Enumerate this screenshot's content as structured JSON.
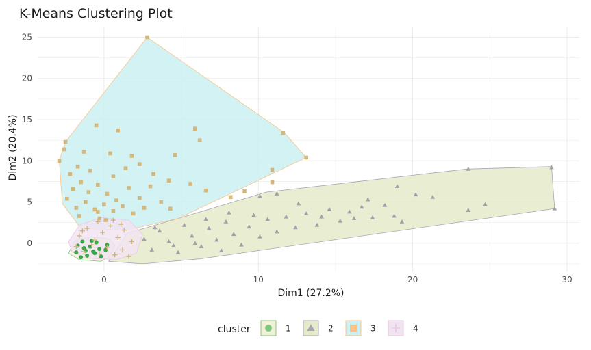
{
  "chart_data": {
    "type": "scatter",
    "title": "K-Means Clustering Plot",
    "xlabel": "Dim1 (27.2%)",
    "ylabel": "Dim2 (20.4%)",
    "xlim": [
      -4.3,
      30.8
    ],
    "ylim": [
      -3.5,
      26.2
    ],
    "x_ticks": [
      0,
      10,
      20,
      30
    ],
    "y_ticks": [
      0,
      5,
      10,
      15,
      20,
      25
    ],
    "grid": true,
    "legend_title": "cluster",
    "legend_position": "bottom",
    "series": [
      {
        "name": "1",
        "marker": "circle",
        "color": "#7fc97f",
        "fill": "#f3f0d8",
        "hull": [
          [
            -2.3,
            -1.2
          ],
          [
            -1.6,
            -2.0
          ],
          [
            -0.2,
            -2.2
          ],
          [
            0.4,
            -1.6
          ],
          [
            0.7,
            -0.3
          ],
          [
            0.4,
            0.5
          ],
          [
            -0.8,
            0.8
          ],
          [
            -1.9,
            0.3
          ]
        ],
        "points": [
          [
            -1.7,
            -0.3
          ],
          [
            -1.2,
            -0.9
          ],
          [
            -0.9,
            -0.4
          ],
          [
            -0.6,
            -1.2
          ],
          [
            -1.4,
            0.2
          ],
          [
            -0.3,
            -0.7
          ],
          [
            -1.1,
            -1.5
          ],
          [
            -0.5,
            0.1
          ],
          [
            0.1,
            -0.8
          ],
          [
            -1.8,
            -1.1
          ],
          [
            -0.8,
            0.3
          ],
          [
            -1.3,
            -0.6
          ],
          [
            -0.2,
            -1.6
          ],
          [
            -1.5,
            -1.7
          ],
          [
            0.2,
            -0.2
          ],
          [
            -0.7,
            -1.0
          ]
        ]
      },
      {
        "name": "2",
        "marker": "triangle",
        "color": "#a9a4b6",
        "fill": "#e5ebca",
        "hull": [
          [
            0.3,
            -2.2
          ],
          [
            2.5,
            -2.5
          ],
          [
            6.2,
            -1.9
          ],
          [
            29.2,
            4.2
          ],
          [
            29.0,
            9.3
          ],
          [
            23.5,
            9.0
          ],
          [
            10.5,
            6.2
          ],
          [
            4.8,
            3.0
          ],
          [
            1.5,
            1.2
          ]
        ],
        "points": [
          [
            2.6,
            0.5
          ],
          [
            3.1,
            -0.8
          ],
          [
            3.6,
            1.5
          ],
          [
            4.2,
            0.2
          ],
          [
            4.8,
            -1.1
          ],
          [
            5.2,
            2.2
          ],
          [
            5.7,
            0.9
          ],
          [
            6.3,
            -0.4
          ],
          [
            6.8,
            1.8
          ],
          [
            7.3,
            0.4
          ],
          [
            7.9,
            2.6
          ],
          [
            8.4,
            1.1
          ],
          [
            8.9,
            -0.2
          ],
          [
            9.4,
            2.0
          ],
          [
            10.1,
            0.8
          ],
          [
            10.6,
            2.9
          ],
          [
            11.2,
            1.4
          ],
          [
            11.8,
            3.2
          ],
          [
            12.4,
            1.9
          ],
          [
            13.1,
            3.6
          ],
          [
            13.8,
            2.2
          ],
          [
            14.6,
            4.1
          ],
          [
            15.3,
            2.7
          ],
          [
            15.9,
            3.8
          ],
          [
            16.7,
            4.4
          ],
          [
            17.4,
            3.1
          ],
          [
            18.2,
            4.6
          ],
          [
            18.8,
            3.3
          ],
          [
            19.3,
            2.6
          ],
          [
            10.1,
            5.7
          ],
          [
            11.2,
            6.0
          ],
          [
            12.6,
            4.8
          ],
          [
            14.1,
            3.2
          ],
          [
            16.2,
            3.0
          ],
          [
            17.1,
            5.3
          ],
          [
            19.0,
            6.9
          ],
          [
            20.2,
            5.9
          ],
          [
            21.3,
            5.6
          ],
          [
            23.6,
            9.0
          ],
          [
            24.7,
            4.7
          ],
          [
            23.6,
            4.0
          ],
          [
            29.0,
            9.2
          ],
          [
            29.2,
            4.2
          ],
          [
            3.3,
            1.9
          ],
          [
            4.5,
            -0.3
          ],
          [
            5.9,
            0.0
          ],
          [
            6.6,
            2.9
          ],
          [
            7.6,
            -0.9
          ],
          [
            8.1,
            3.7
          ],
          [
            9.7,
            3.4
          ]
        ]
      },
      {
        "name": "3",
        "marker": "square",
        "color": "#fdc086",
        "fill": "#cbf0f1",
        "hull": [
          [
            -2.9,
            10.0
          ],
          [
            -2.5,
            12.3
          ],
          [
            2.8,
            25.0
          ],
          [
            11.7,
            13.4
          ],
          [
            13.1,
            10.4
          ],
          [
            4.8,
            3.0
          ],
          [
            1.5,
            1.6
          ],
          [
            -1.5,
            1.8
          ],
          [
            -2.7,
            4.8
          ]
        ],
        "points": [
          [
            2.8,
            25.0
          ],
          [
            -2.5,
            12.3
          ],
          [
            -2.9,
            10.0
          ],
          [
            -2.6,
            11.4
          ],
          [
            -0.5,
            14.3
          ],
          [
            0.9,
            13.7
          ],
          [
            5.9,
            13.9
          ],
          [
            6.2,
            12.5
          ],
          [
            11.6,
            13.4
          ],
          [
            13.1,
            10.4
          ],
          [
            10.9,
            7.4
          ],
          [
            10.9,
            8.9
          ],
          [
            -1.3,
            11.1
          ],
          [
            0.4,
            10.9
          ],
          [
            1.8,
            10.6
          ],
          [
            2.3,
            9.6
          ],
          [
            4.6,
            10.7
          ],
          [
            -1.7,
            9.3
          ],
          [
            -0.9,
            8.8
          ],
          [
            0.6,
            8.1
          ],
          [
            1.4,
            9.1
          ],
          [
            3.2,
            8.4
          ],
          [
            4.2,
            7.6
          ],
          [
            5.6,
            7.2
          ],
          [
            6.6,
            6.4
          ],
          [
            8.2,
            5.6
          ],
          [
            9.1,
            6.3
          ],
          [
            -2.2,
            8.4
          ],
          [
            -2.0,
            6.6
          ],
          [
            -1.5,
            7.4
          ],
          [
            -1.0,
            6.2
          ],
          [
            -0.4,
            7.1
          ],
          [
            0.2,
            6.0
          ],
          [
            0.8,
            5.2
          ],
          [
            1.6,
            6.7
          ],
          [
            2.3,
            5.5
          ],
          [
            3.0,
            6.9
          ],
          [
            3.7,
            5.0
          ],
          [
            -2.4,
            5.4
          ],
          [
            -1.8,
            4.3
          ],
          [
            -1.2,
            5.0
          ],
          [
            -0.6,
            4.1
          ],
          [
            0.0,
            4.7
          ],
          [
            0.6,
            3.9
          ],
          [
            1.2,
            4.5
          ],
          [
            1.9,
            3.6
          ],
          [
            2.6,
            4.3
          ],
          [
            -0.3,
            3.0
          ],
          [
            -1.6,
            3.3
          ],
          [
            4.3,
            4.2
          ],
          [
            -0.4,
            3.8
          ],
          [
            0.1,
            2.8
          ]
        ]
      },
      {
        "name": "4",
        "marker": "cross",
        "color": "#e9c6e8",
        "fill": "#f1e4f1",
        "hull": [
          [
            -2.3,
            0.2
          ],
          [
            -1.6,
            2.2
          ],
          [
            -0.2,
            3.1
          ],
          [
            1.6,
            2.8
          ],
          [
            2.5,
            1.1
          ],
          [
            2.1,
            -1.2
          ],
          [
            0.8,
            -2.0
          ],
          [
            -1.2,
            -1.8
          ],
          [
            -2.1,
            -1.0
          ]
        ],
        "points": [
          [
            -1.6,
            0.9
          ],
          [
            -1.1,
            1.8
          ],
          [
            -0.6,
            0.4
          ],
          [
            -0.1,
            1.3
          ],
          [
            0.4,
            2.1
          ],
          [
            0.9,
            0.7
          ],
          [
            1.3,
            1.6
          ],
          [
            1.8,
            0.2
          ],
          [
            -1.8,
            -0.4
          ],
          [
            -1.3,
            -1.0
          ],
          [
            -0.8,
            -0.2
          ],
          [
            -0.3,
            -1.3
          ],
          [
            0.2,
            -0.5
          ],
          [
            0.7,
            -1.4
          ],
          [
            1.2,
            -0.8
          ],
          [
            1.6,
            -1.6
          ],
          [
            -0.4,
            2.6
          ],
          [
            0.6,
            2.8
          ],
          [
            -1.4,
            1.5
          ],
          [
            1.1,
            2.3
          ]
        ]
      }
    ]
  }
}
